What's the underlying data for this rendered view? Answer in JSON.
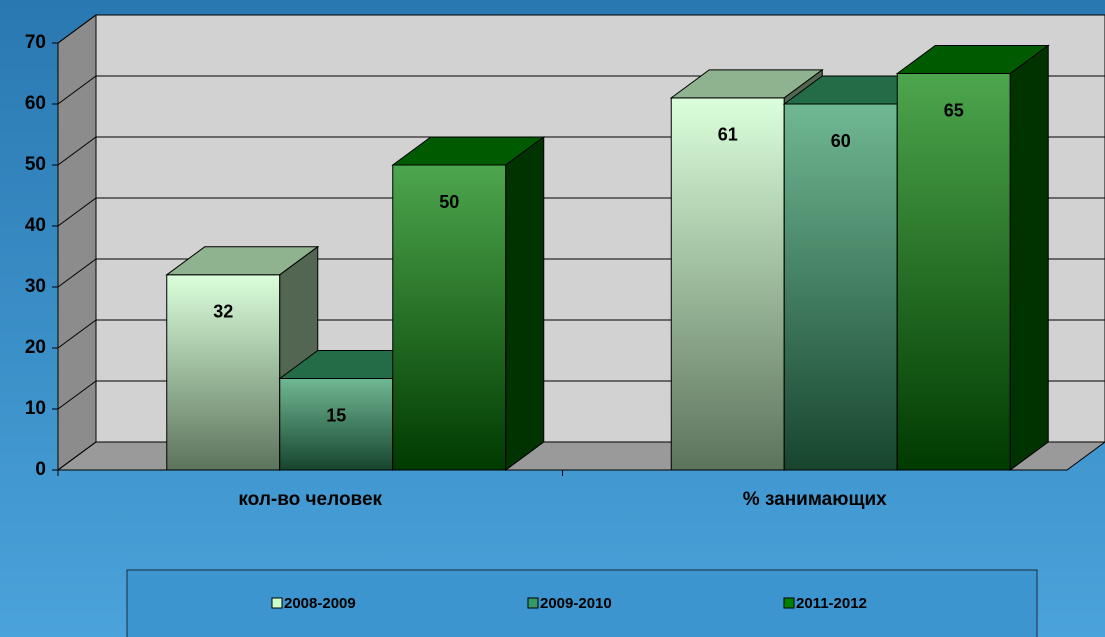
{
  "chart_data": {
    "type": "bar3d",
    "categories": [
      "кол-во человек",
      "% занимающих"
    ],
    "series": [
      {
        "name": "2008-2009",
        "color": "#ccffcc",
        "values": [
          32,
          61
        ]
      },
      {
        "name": "2009-2010",
        "color": "#339966",
        "values": [
          15,
          60
        ]
      },
      {
        "name": "2011-2012",
        "color": "#008000",
        "values": [
          50,
          65
        ]
      }
    ],
    "ylim": [
      0,
      70
    ],
    "yticks": [
      0,
      10,
      20,
      30,
      40,
      50,
      60,
      70
    ],
    "grid": true
  }
}
